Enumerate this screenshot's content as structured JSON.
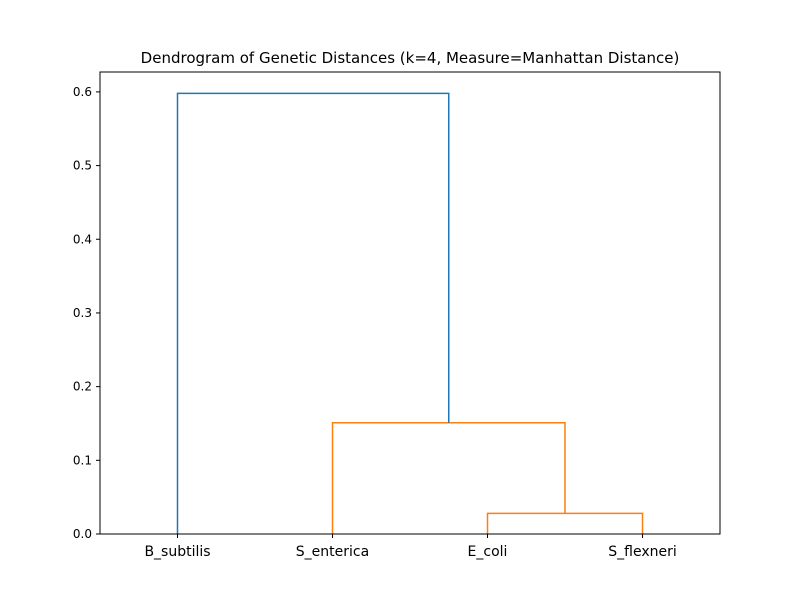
{
  "chart_data": {
    "type": "dendrogram",
    "title": "Dendrogram of Genetic Distances (k=4, Measure=Manhattan Distance)",
    "xlabel": "",
    "ylabel": "",
    "leaves": [
      "B_subtilis",
      "S_enterica",
      "E_coli",
      "S_flexneri"
    ],
    "ylim": [
      0,
      0.627
    ],
    "yticks": [
      0.0,
      0.1,
      0.2,
      0.3,
      0.4,
      0.5,
      0.6
    ],
    "ytick_labels": [
      "0.0",
      "0.1",
      "0.2",
      "0.3",
      "0.4",
      "0.5",
      "0.6"
    ],
    "merges": [
      {
        "left": "E_coli",
        "right": "S_flexneri",
        "height": 0.028,
        "color": "#ff7f0e"
      },
      {
        "left": "S_enterica",
        "right": "(E_coli, S_flexneri)",
        "height": 0.151,
        "color": "#ff7f0e"
      },
      {
        "left": "B_subtilis",
        "right": "(S_enterica, E_coli, S_flexneri)",
        "height": 0.598,
        "color": "#1f77b4"
      }
    ],
    "grid": false,
    "colors": {
      "cluster": "#ff7f0e",
      "above_threshold": "#1f77b4"
    }
  }
}
